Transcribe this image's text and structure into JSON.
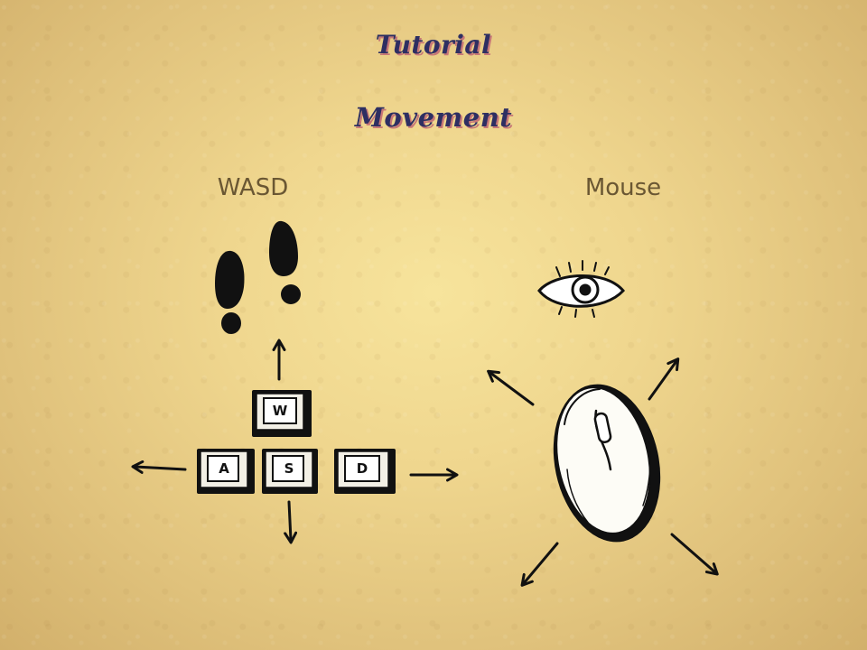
{
  "screen": {
    "title": "Tutorial",
    "section": "Movement"
  },
  "columns": {
    "left_label": "WASD",
    "right_label": "Mouse"
  },
  "keys": {
    "up": "W",
    "left": "A",
    "down": "S",
    "right": "D"
  },
  "icons": {
    "footprints": "footprints-icon",
    "eye": "eye-icon",
    "mouse": "computer-mouse-icon"
  },
  "colors": {
    "title_text": "#2e2f62",
    "title_shadow": "#c77777",
    "label_text": "#6a5733",
    "background": "#efd68e",
    "ink": "#111111"
  }
}
